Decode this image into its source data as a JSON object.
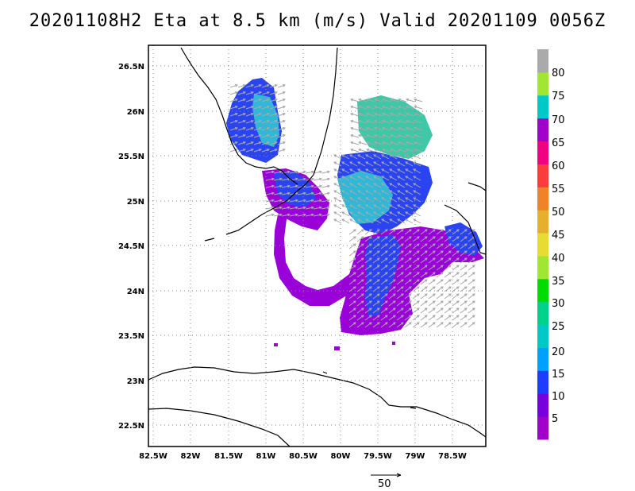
{
  "title": "20201108H2 Eta at 8.5 km (m/s) Valid 20201109 0056Z",
  "map": {
    "lon_ticks": [
      "82.5W",
      "82W",
      "81.5W",
      "81W",
      "80.5W",
      "80W",
      "79.5W",
      "79W",
      "78.5W"
    ],
    "lat_ticks": [
      "26.5N",
      "26N",
      "25.5N",
      "25N",
      "24.5N",
      "24N",
      "23.5N",
      "23N",
      "22.5N"
    ],
    "lon_range": [
      -82.5,
      -78.1
    ],
    "lat_range": [
      22.25,
      26.75
    ],
    "grid": true
  },
  "colorbar": {
    "labels": [
      "5",
      "10",
      "15",
      "20",
      "25",
      "30",
      "35",
      "40",
      "45",
      "50",
      "55",
      "60",
      "65",
      "70",
      "75",
      "80"
    ],
    "colors": [
      "#a000c8",
      "#7800dc",
      "#1e3cff",
      "#00a0ff",
      "#00c8c8",
      "#00d28c",
      "#00dc00",
      "#a0e632",
      "#e6dc32",
      "#e6af2d",
      "#f08228",
      "#fa3c3c",
      "#f00082",
      "#a000c8",
      "#00c8c8",
      "#a0e632",
      "#aaaaaa"
    ]
  },
  "vector_scale": {
    "label": "50"
  },
  "colors": {
    "purple": "#9a00d8",
    "blue": "#2a44f2",
    "cyan": "#2fb8d8",
    "teal": "#3ec8a8",
    "arrow": "#a8a8a8"
  }
}
